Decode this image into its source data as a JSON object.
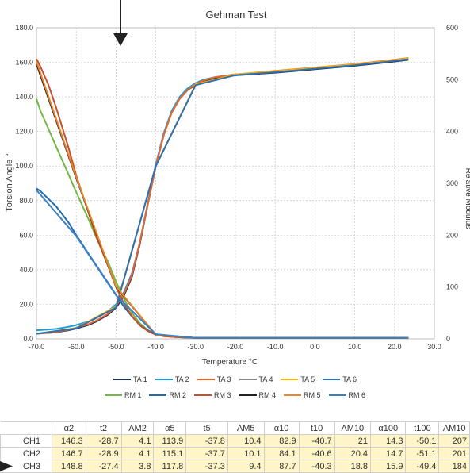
{
  "chart_data": {
    "type": "line",
    "title": "Gehman Test",
    "xlabel": "Temperature  °C",
    "ylabel": "Torsion Angle °",
    "y2label": "Relative Modulus",
    "xlim": [
      -70,
      30
    ],
    "ylim": [
      0,
      180
    ],
    "y2lim": [
      0,
      600
    ],
    "xticks": [
      "-70.0",
      "-60.0",
      "-50.0",
      "-40.0",
      "-30.0",
      "-20.0",
      "-10.0",
      "0.0",
      "10.0",
      "20.0",
      "30.0"
    ],
    "yticks": [
      "0.0",
      "20.0",
      "40.0",
      "60.0",
      "80.0",
      "100.0",
      "120.0",
      "140.0",
      "160.0",
      "180.0"
    ],
    "y2ticks": [
      "0",
      "100",
      "200",
      "300",
      "400",
      "500",
      "600"
    ],
    "grid": true,
    "legend_position": "bottom",
    "series": [
      {
        "name": "TA 1",
        "axis": "left",
        "color": "#1f2f4f",
        "x": [
          -70,
          -68,
          -65,
          -62,
          -60,
          -57,
          -55,
          -52,
          -50,
          -48,
          -46,
          -44,
          -42,
          -40,
          -38,
          -36,
          -34,
          -32,
          -30,
          -28,
          -25,
          -20,
          -10,
          0,
          10,
          20,
          23.5
        ],
        "y": [
          3,
          3.3,
          3.8,
          5,
          6,
          8,
          10,
          14,
          18,
          25,
          36,
          55,
          78,
          100,
          118,
          131,
          139,
          144,
          147,
          149,
          151,
          152.5,
          154,
          156,
          158,
          160.5,
          161.5
        ]
      },
      {
        "name": "TA 2",
        "axis": "left",
        "color": "#1f9ad6",
        "x": [
          -70,
          -68,
          -65,
          -62,
          -60,
          -57,
          -55,
          -52,
          -50,
          -48,
          -46,
          -44,
          -42,
          -40,
          -38,
          -36,
          -34,
          -32,
          -30,
          -28,
          -25,
          -20,
          -10,
          0,
          10,
          20,
          23.5
        ],
        "y": [
          5,
          5.3,
          5.8,
          7,
          8,
          10,
          12,
          16,
          20,
          27,
          38,
          56,
          79,
          101,
          119,
          132,
          140,
          145,
          148,
          150,
          151.5,
          153,
          154.5,
          156.5,
          158.5,
          161,
          162
        ]
      },
      {
        "name": "TA 3",
        "axis": "left",
        "color": "#e8662a",
        "x": [
          -70,
          -68,
          -65,
          -62,
          -60,
          -57,
          -55,
          -52,
          -50,
          -48,
          -46,
          -44,
          -42,
          -40,
          -38,
          -36,
          -34,
          -32,
          -30,
          -28,
          -25,
          -20,
          -10,
          0,
          10,
          20,
          23.5
        ],
        "y": [
          3,
          3.4,
          4,
          5.3,
          6.5,
          8.5,
          10.5,
          14.5,
          19,
          26,
          37,
          56,
          78,
          100,
          118,
          131,
          139,
          144,
          147.5,
          149.5,
          151.5,
          153,
          155,
          157,
          159,
          161.5,
          162.5
        ]
      },
      {
        "name": "TA 4",
        "axis": "left",
        "color": "#8a8a8a",
        "x": [
          -70,
          -60,
          -50,
          -40,
          -30,
          -20,
          -10,
          0,
          10,
          20,
          23.5
        ],
        "y": [
          3,
          6.2,
          18.5,
          100,
          147,
          152.8,
          154.5,
          156.5,
          158.5,
          161,
          162
        ]
      },
      {
        "name": "TA 5",
        "axis": "left",
        "color": "#f5b800",
        "x": [
          -70,
          -60,
          -50,
          -40,
          -30,
          -20,
          -10,
          0,
          10,
          20,
          23.5
        ],
        "y": [
          3,
          6.3,
          18.8,
          100,
          147.2,
          153,
          154.8,
          156.8,
          158.8,
          161.2,
          162.2
        ]
      },
      {
        "name": "TA 6",
        "axis": "left",
        "color": "#2e6fb5",
        "x": [
          -70,
          -60,
          -50,
          -40,
          -30,
          -20,
          -10,
          0,
          10,
          20,
          23.5
        ],
        "y": [
          3,
          6.1,
          18.2,
          100,
          146.8,
          152.6,
          154.3,
          156.3,
          158.3,
          160.8,
          161.8
        ]
      },
      {
        "name": "RM 1",
        "axis": "right",
        "color": "#72b843",
        "x": [
          -70,
          -69,
          -67,
          -65,
          -62,
          -60,
          -57,
          -55,
          -52,
          -50,
          -48,
          -46,
          -44,
          -42,
          -40,
          -38,
          -36,
          -34,
          -32,
          -30,
          -25,
          -20,
          -10,
          0,
          10,
          20,
          23.5
        ],
        "y": [
          463,
          440,
          405,
          370,
          318,
          283,
          232,
          196,
          148,
          110,
          77,
          50,
          30,
          17,
          9,
          6,
          4,
          3,
          2.5,
          2,
          2,
          2,
          2,
          2,
          2,
          2,
          2
        ]
      },
      {
        "name": "RM 2",
        "axis": "right",
        "color": "#1f6cb0",
        "x": [
          -70,
          -69,
          -67,
          -65,
          -62,
          -60,
          -57,
          -55,
          -52,
          -50,
          -48,
          -46,
          -44,
          -42,
          -40,
          -38,
          -36,
          -34,
          -32,
          -30,
          -25,
          -20,
          -10,
          0,
          10,
          20,
          23.5
        ],
        "y": [
          290,
          285,
          270,
          255,
          225,
          200,
          165,
          142,
          108,
          85,
          62,
          43,
          27,
          16,
          9,
          6,
          4,
          3,
          2.5,
          2,
          2,
          2,
          2,
          2,
          2,
          2,
          2
        ]
      },
      {
        "name": "RM 3",
        "axis": "right",
        "color": "#c8502e",
        "x": [
          -70,
          -69,
          -67,
          -65,
          -62,
          -60,
          -57,
          -55,
          -52,
          -50,
          -48,
          -46,
          -44,
          -42,
          -40,
          -38,
          -36,
          -34,
          -32,
          -30,
          -25,
          -20,
          -10,
          0,
          10,
          20,
          23.5
        ],
        "y": [
          540,
          525,
          490,
          445,
          370,
          315,
          245,
          198,
          140,
          100,
          68,
          44,
          26,
          15,
          8,
          5,
          4,
          3,
          2.5,
          2,
          2,
          2,
          2,
          2,
          2,
          2,
          2
        ]
      },
      {
        "name": "RM 4",
        "axis": "right",
        "color": "#222222",
        "x": [
          -70,
          -60,
          -50,
          -40,
          -30,
          -20,
          -10,
          0,
          10,
          20,
          23.5
        ],
        "y": [
          530,
          310,
          100,
          8,
          2,
          2,
          2,
          2,
          2,
          2,
          2
        ]
      },
      {
        "name": "RM 5",
        "axis": "right",
        "color": "#e8872a",
        "x": [
          -70,
          -60,
          -50,
          -40,
          -30,
          -20,
          -10,
          0,
          10,
          20,
          23.5
        ],
        "y": [
          535,
          312,
          101,
          8,
          2,
          2,
          2,
          2,
          2,
          2,
          2
        ]
      },
      {
        "name": "RM 6",
        "axis": "right",
        "color": "#3b7fc4",
        "x": [
          -70,
          -60,
          -50,
          -40,
          -30,
          -20,
          -10,
          0,
          10,
          20,
          23.5
        ],
        "y": [
          287,
          198,
          84,
          9,
          2,
          2,
          2,
          2,
          2,
          2,
          2
        ]
      }
    ]
  },
  "legend_rows": [
    [
      {
        "name": "TA 1",
        "color": "#1f2f4f"
      },
      {
        "name": "TA 2",
        "color": "#1f9ad6"
      },
      {
        "name": "TA 3",
        "color": "#e8662a"
      },
      {
        "name": "TA 4",
        "color": "#8a8a8a"
      },
      {
        "name": "TA 5",
        "color": "#f5b800"
      },
      {
        "name": "TA 6",
        "color": "#2e6fb5"
      }
    ],
    [
      {
        "name": "RM 1",
        "color": "#72b843"
      },
      {
        "name": "RM 2",
        "color": "#1f6cb0"
      },
      {
        "name": "RM 3",
        "color": "#c8502e"
      },
      {
        "name": "RM 4",
        "color": "#222222"
      },
      {
        "name": "RM 5",
        "color": "#e8872a"
      },
      {
        "name": "RM 6",
        "color": "#3b7fc4"
      }
    ]
  ],
  "table": {
    "headers": [
      "",
      "α2",
      "t2",
      "AM2",
      "α5",
      "t5",
      "AM5",
      "α10",
      "t10",
      "AM10",
      "α100",
      "t100",
      "AM10"
    ],
    "rows": [
      [
        "CH1",
        "146.3",
        "-28.7",
        "4.1",
        "113.9",
        "-37.8",
        "10.4",
        "82.9",
        "-40.7",
        "21",
        "14.3",
        "-50.1",
        "207"
      ],
      [
        "CH2",
        "146.7",
        "-28.9",
        "4.1",
        "115.1",
        "-37.7",
        "10.1",
        "84.1",
        "-40.6",
        "20.4",
        "14.7",
        "-51.1",
        "201"
      ],
      [
        "CH3",
        "148.8",
        "-27.4",
        "3.8",
        "117.8",
        "-37.3",
        "9.4",
        "87.7",
        "-40.3",
        "18.8",
        "15.9",
        "-49.4",
        "184"
      ]
    ]
  }
}
